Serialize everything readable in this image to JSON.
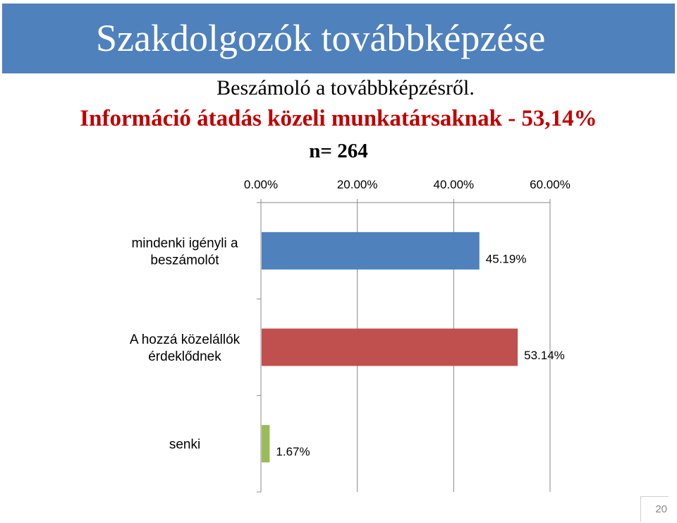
{
  "slide": {
    "title": "Szakdolgozók továbbképzése",
    "subtitle_line1": "Beszámoló a továbbképzésről.",
    "subtitle_line2": "Információ átadás közeli munkatársaknak  - 53,14%",
    "subtitle_line3": "n= 264",
    "page_number": "20"
  },
  "chart_data": {
    "type": "bar",
    "orientation": "horizontal",
    "categories": [
      [
        "mindenki igényli a",
        "beszámolót"
      ],
      [
        "A hozzá közelállók",
        "érdeklődnek"
      ],
      [
        "senki"
      ]
    ],
    "values": [
      45.19,
      53.14,
      1.67
    ],
    "value_labels": [
      "45.19%",
      "53.14%",
      "1.67%"
    ],
    "colors": [
      "#4f81bd",
      "#c0504d",
      "#9bbb59"
    ],
    "xlim": [
      0,
      60
    ],
    "xticks": [
      "0.00%",
      "20.00%",
      "40.00%",
      "60.00%"
    ],
    "xtick_values": [
      0,
      20,
      40,
      60
    ],
    "axis_position": "top",
    "grid": true
  }
}
